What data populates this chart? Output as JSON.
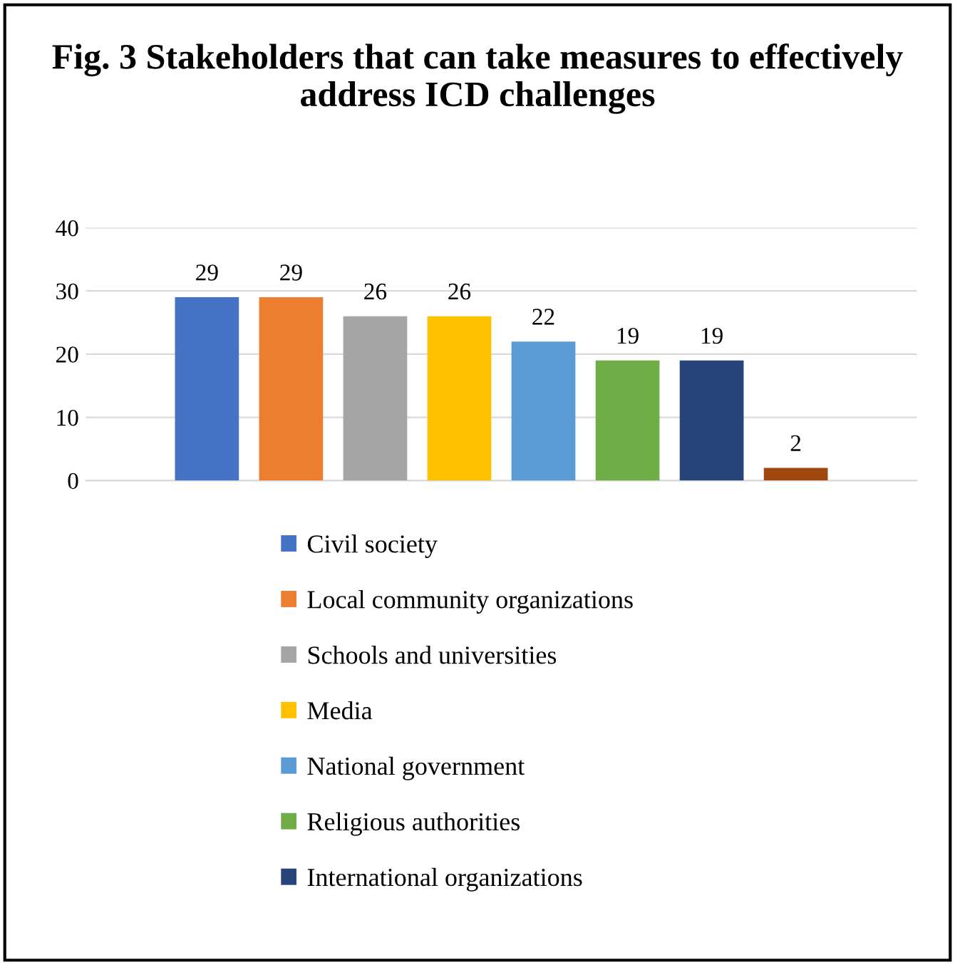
{
  "chart_data": {
    "type": "bar",
    "title": "Fig. 3 Stakeholders that can take measures to effectively address ICD challenges",
    "categories": [
      null
    ],
    "series": [
      {
        "name": "Civil society",
        "color": "#4472c4",
        "values": [
          29
        ]
      },
      {
        "name": "Local community organizations",
        "color": "#ed7d31",
        "values": [
          29
        ]
      },
      {
        "name": "Schools and universities",
        "color": "#a5a5a5",
        "values": [
          26
        ]
      },
      {
        "name": "Media",
        "color": "#ffc000",
        "values": [
          26
        ]
      },
      {
        "name": "National government",
        "color": "#5b9bd5",
        "values": [
          22
        ]
      },
      {
        "name": "Religious authorities",
        "color": "#70ad47",
        "values": [
          19
        ]
      },
      {
        "name": "International organizations",
        "color": "#264478",
        "values": [
          19
        ]
      },
      {
        "color": "#9e480e",
        "values": [
          2
        ]
      }
    ],
    "ylim": [
      0,
      40
    ],
    "yticks": [
      0,
      10,
      20,
      30,
      40
    ],
    "grid": "y",
    "legend": "bottom",
    "data_labels": true
  }
}
